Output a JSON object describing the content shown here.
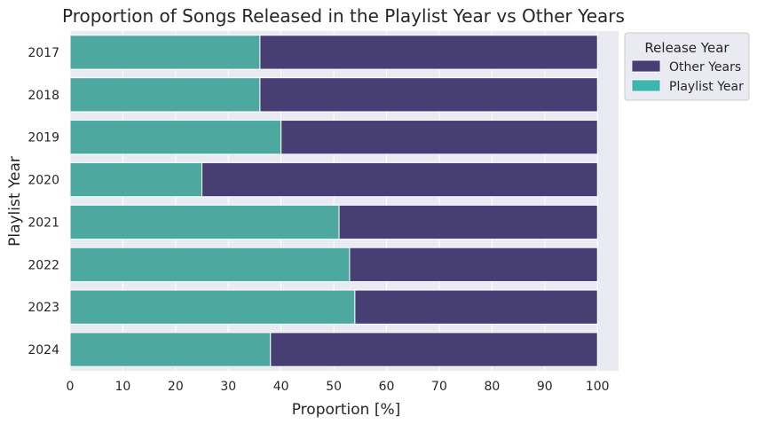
{
  "chart_data": {
    "type": "bar",
    "orientation": "horizontal",
    "stacked": true,
    "title": "Proportion of Songs Released in the Playlist Year vs Other Years",
    "xlabel": "Proportion [%]",
    "ylabel": "Playlist Year",
    "xlim": [
      0,
      104
    ],
    "xticks": [
      0,
      10,
      20,
      30,
      40,
      50,
      60,
      70,
      80,
      90,
      100
    ],
    "categories": [
      "2017",
      "2018",
      "2019",
      "2020",
      "2021",
      "2022",
      "2023",
      "2024"
    ],
    "series": [
      {
        "name": "Playlist Year",
        "color": "#4da8a0",
        "values": [
          36,
          36,
          40,
          25,
          51,
          53,
          54,
          38
        ]
      },
      {
        "name": "Other Years",
        "color": "#473f74",
        "values": [
          64,
          64,
          60,
          75,
          49,
          47,
          46,
          62
        ]
      }
    ],
    "grid": true,
    "legend": {
      "title": "Release Year",
      "placement": "outside-top-right",
      "entries": [
        {
          "label": "Other Years",
          "color": "#473f74"
        },
        {
          "label": "Playlist Year",
          "color": "#3fb6ad"
        }
      ]
    },
    "background": "#eaeaf2"
  }
}
